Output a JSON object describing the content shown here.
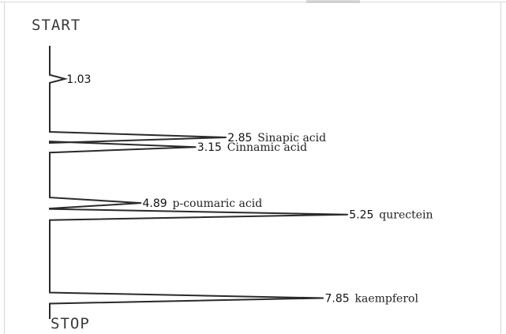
{
  "chart_data": {
    "type": "line",
    "start_label": "START",
    "stop_label": "STOP",
    "peaks": [
      {
        "rt": 1.03,
        "rt_text": "1.03",
        "name": "",
        "response": 0.05
      },
      {
        "rt": 2.85,
        "rt_text": "2.85",
        "name": "Sinapic acid",
        "response": 0.58
      },
      {
        "rt": 3.15,
        "rt_text": "3.15",
        "name": "Cinnamic acid",
        "response": 0.48
      },
      {
        "rt": 4.89,
        "rt_text": "4.89",
        "name": "p-coumaric acid",
        "response": 0.3
      },
      {
        "rt": 5.25,
        "rt_text": "5.25",
        "name": "qurectein",
        "response": 0.98
      },
      {
        "rt": 7.85,
        "rt_text": "7.85",
        "name": "kaempferol",
        "response": 0.9
      }
    ],
    "axis": {
      "min": 0,
      "max": 8.5
    }
  }
}
